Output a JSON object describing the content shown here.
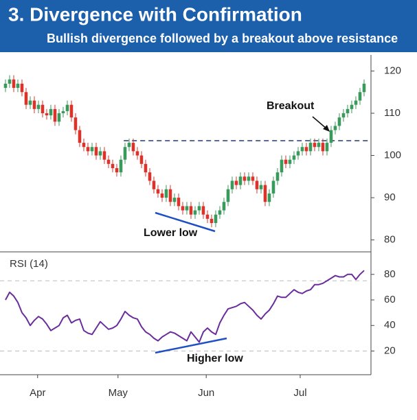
{
  "chart_data": [
    {
      "type": "candlestick",
      "title": "3. Divergence with Confirmation",
      "subtitle": "Bullish divergence followed by a breakout above resistance",
      "open": [
        116,
        117,
        118,
        116,
        117,
        115,
        112,
        113,
        111,
        112,
        110,
        109.5,
        111,
        108,
        110,
        110.5,
        112,
        109,
        106,
        103,
        102,
        101,
        102,
        100,
        101,
        99,
        98,
        97,
        96,
        99,
        102,
        103,
        101,
        100,
        98,
        96,
        94,
        92,
        91,
        90,
        92,
        89,
        90,
        88,
        87,
        88,
        86,
        87,
        88,
        86,
        85,
        84,
        86,
        87,
        89,
        92,
        94,
        93,
        95,
        94,
        95,
        94,
        92,
        93,
        89,
        91,
        94,
        96,
        99,
        98,
        99,
        100,
        101,
        102,
        101,
        103,
        102,
        103,
        101,
        103,
        106,
        107,
        109,
        110,
        111,
        112,
        113,
        115
      ],
      "high": [
        118,
        119,
        119,
        118,
        118,
        116,
        114,
        114,
        113,
        113,
        111,
        112,
        112,
        111,
        111.5,
        113,
        113,
        110,
        107,
        104,
        103,
        103,
        103,
        102,
        102,
        100,
        99,
        98,
        100,
        103,
        104,
        104,
        102,
        101,
        99,
        97,
        95,
        93,
        92,
        93,
        93,
        91,
        91,
        89,
        89,
        89,
        88,
        89,
        89,
        87,
        86,
        87,
        88,
        90,
        93,
        95,
        95,
        96,
        96,
        96,
        96,
        95,
        94,
        94,
        92,
        95,
        97,
        100,
        100,
        100,
        101,
        102,
        103,
        103,
        104,
        104,
        104,
        104,
        104,
        107,
        108,
        110,
        111,
        112,
        113,
        114,
        116,
        118
      ],
      "low": [
        115,
        116,
        115,
        115,
        114,
        111,
        111,
        110,
        110,
        109,
        108.5,
        108.5,
        107,
        107,
        109,
        109.5,
        108,
        105,
        102,
        101,
        100,
        100,
        99,
        99,
        98,
        97,
        96,
        95,
        95,
        98,
        101,
        100,
        99,
        97,
        95,
        93,
        91,
        90,
        89,
        89,
        88,
        88,
        87,
        86,
        86,
        85,
        85,
        86,
        85,
        84,
        83,
        83,
        85,
        86,
        88,
        91,
        92,
        92,
        93,
        93,
        93,
        91,
        91,
        88,
        88,
        90,
        93,
        95,
        97,
        97,
        98,
        99,
        100,
        100,
        100,
        101,
        101,
        100,
        100,
        102,
        105,
        106,
        108,
        109,
        110,
        111,
        112,
        114
      ],
      "close": [
        117,
        118,
        116,
        117,
        115,
        112,
        113,
        111,
        112,
        110,
        109.5,
        111,
        108,
        110,
        110.5,
        112,
        109,
        106,
        103,
        102,
        101,
        102,
        100,
        101,
        99,
        98,
        97,
        96,
        99,
        102,
        103,
        101,
        100,
        98,
        96,
        94,
        92,
        91,
        90,
        92,
        89,
        90,
        88,
        87,
        88,
        86,
        87,
        88,
        86,
        85,
        84,
        86,
        87,
        89,
        92,
        94,
        93,
        95,
        94,
        95,
        94,
        92,
        93,
        89,
        91,
        94,
        96,
        99,
        98,
        99,
        100,
        101,
        102,
        101,
        103,
        102,
        103,
        101,
        103,
        106,
        107,
        109,
        110,
        111,
        112,
        113,
        115,
        117
      ],
      "up_color": "#3a9a5b",
      "down_color": "#d9342b",
      "ylim": [
        77.5,
        123
      ],
      "yticks": [
        80,
        90,
        100,
        110,
        120
      ],
      "resistance": 103.5,
      "annotations": [
        "Breakout",
        "Lower low"
      ]
    },
    {
      "type": "line",
      "title": "RSI (14)",
      "values": [
        60,
        66,
        63,
        58,
        50,
        46,
        40,
        44,
        47,
        45,
        41,
        36,
        38,
        40,
        46,
        48,
        42,
        44,
        45,
        36,
        34,
        33,
        38,
        43,
        40,
        37,
        38,
        40,
        45,
        51,
        48,
        46,
        45,
        39,
        35,
        33,
        30,
        28,
        31,
        33,
        35,
        34,
        32,
        30,
        28,
        35,
        31,
        27,
        35,
        38,
        35,
        33,
        42,
        48,
        53,
        54,
        55,
        57,
        58,
        55,
        52,
        48,
        45,
        49,
        52,
        57,
        63,
        62,
        62,
        65,
        68,
        66,
        65,
        67,
        68,
        72,
        72,
        73,
        75,
        77,
        79,
        78,
        78,
        80,
        80,
        76,
        80,
        83
      ],
      "color": "#6a2c9c",
      "ylim": [
        2,
        96
      ],
      "yticks": [
        20,
        40,
        60,
        80
      ],
      "levels": [
        20,
        75
      ],
      "xlim": [
        -1.33,
        88.67
      ],
      "xticks": [
        {
          "value": 7.8,
          "label": "Apr"
        },
        {
          "value": 27.3,
          "label": "May"
        },
        {
          "value": 48.7,
          "label": "Jun"
        },
        {
          "value": 71.5,
          "label": "Jul"
        }
      ],
      "annotations": [
        "Higher low"
      ]
    }
  ]
}
